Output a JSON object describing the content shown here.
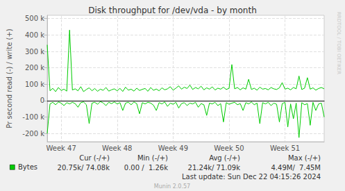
{
  "chart_data": {
    "type": "line",
    "title": "Disk throughput for /dev/vda - by month",
    "y_label": "Pr second read (-) / write (+)",
    "categories": [
      null,
      null,
      null,
      null,
      null,
      "Week 47",
      null,
      null,
      null,
      null,
      null,
      null,
      null,
      null,
      null,
      null,
      null,
      null,
      null,
      null,
      null,
      null,
      null,
      null,
      null,
      "Week 48",
      null,
      null,
      null,
      null,
      null,
      null,
      null,
      null,
      null,
      null,
      null,
      null,
      null,
      null,
      null,
      null,
      null,
      null,
      null,
      "Week 49",
      null,
      null,
      null,
      null,
      null,
      null,
      null,
      null,
      null,
      null,
      null,
      null,
      null,
      null,
      null,
      null,
      null,
      null,
      null,
      "Week 50",
      null,
      null,
      null,
      null,
      null,
      null,
      null,
      null,
      null,
      null,
      null,
      null,
      null,
      null,
      null,
      null,
      null,
      null,
      null,
      "Week 51",
      null,
      null,
      null,
      null,
      null,
      null,
      null,
      null,
      null,
      null,
      null,
      null,
      null,
      null
    ],
    "series": [
      {
        "name": "Bytes",
        "color": "#00cc00",
        "values": [
          340000,
          60000,
          75000,
          55000,
          80000,
          62000,
          70000,
          58000,
          430000,
          65000,
          72000,
          60000,
          85000,
          55000,
          68000,
          78000,
          60000,
          74000,
          57000,
          70000,
          63000,
          80000,
          58000,
          66000,
          72000,
          60000,
          75000,
          56000,
          82000,
          64000,
          70000,
          58000,
          76000,
          62000,
          69000,
          74000,
          57000,
          80000,
          63000,
          71000,
          60000,
          78000,
          66000,
          72000,
          85000,
          64000,
          76000,
          90000,
          70000,
          82000,
          74000,
          95000,
          68000,
          80000,
          72000,
          88000,
          66000,
          78000,
          70000,
          84000,
          65000,
          76000,
          70000,
          82000,
          68000,
          75000,
          220000,
          72000,
          80000,
          66000,
          78000,
          70000,
          130000,
          68000,
          76000,
          64000,
          82000,
          70000,
          74000,
          66000,
          80000,
          72000,
          68000,
          78000,
          110000,
          70000,
          76000,
          66000,
          80000,
          72000,
          150000,
          68000,
          76000,
          140000,
          70000,
          78000,
          64000,
          74000,
          80000,
          72000
        ]
      },
      {
        "color": "#00cc00",
        "values": [
          -200000,
          -20000,
          -10000,
          -25000,
          -8000,
          -15000,
          -30000,
          -12000,
          -20000,
          -10000,
          -18000,
          -40000,
          -12000,
          -8000,
          -25000,
          -140000,
          -15000,
          -10000,
          -22000,
          -6000,
          -14000,
          -30000,
          -10000,
          -18000,
          -8000,
          -20000,
          -12000,
          -60000,
          -15000,
          -10000,
          -25000,
          -8000,
          -18000,
          -80000,
          -12000,
          -20000,
          -10000,
          -15000,
          -28000,
          -60000,
          -12000,
          -20000,
          -8000,
          -35000,
          -15000,
          -22000,
          -10000,
          -45000,
          -18000,
          -12000,
          -30000,
          -15000,
          -20000,
          -10000,
          -40000,
          -18000,
          -25000,
          -90000,
          -15000,
          -20000,
          -10000,
          -30000,
          -18000,
          -130000,
          -12000,
          -22000,
          -15000,
          -10000,
          -25000,
          -18000,
          -60000,
          -12000,
          -20000,
          -8000,
          -25000,
          -15000,
          -140000,
          -12000,
          -20000,
          -10000,
          -30000,
          -15000,
          -22000,
          -130000,
          -18000,
          -10000,
          -160000,
          -20000,
          -110000,
          -15000,
          -225000,
          -12000,
          -25000,
          -18000,
          -150000,
          -10000,
          -60000,
          -20000,
          -15000,
          -100000
        ]
      }
    ],
    "ylim": [
      -250000,
      520000
    ],
    "yticks": [
      {
        "value": -200000,
        "label": "-200 k"
      },
      {
        "value": -100000,
        "label": "-100 k"
      },
      0,
      {
        "value": 100000,
        "label": "100 k"
      },
      {
        "value": 200000,
        "label": "200 k"
      },
      {
        "value": 300000,
        "label": "300 k"
      },
      {
        "value": 400000,
        "label": "400 k"
      },
      {
        "value": 500000,
        "label": "500 k"
      }
    ],
    "grid": true,
    "stats": {
      "columns": [
        "Cur (-/+)",
        "Min (-/+)",
        "Avg (-/+)",
        "Max (-/+)"
      ],
      "values": [
        "20.75k/ 74.08k",
        "0.00 /  1.26k",
        "21.24k/ 71.09k",
        "4.49M/  7.45M"
      ]
    },
    "last_update": "Last update: Sun Dec 22 04:15:26 2024",
    "credit": "Munin 2.0.57",
    "watermark": "RRDTOOL / TOBI OETIKER"
  }
}
